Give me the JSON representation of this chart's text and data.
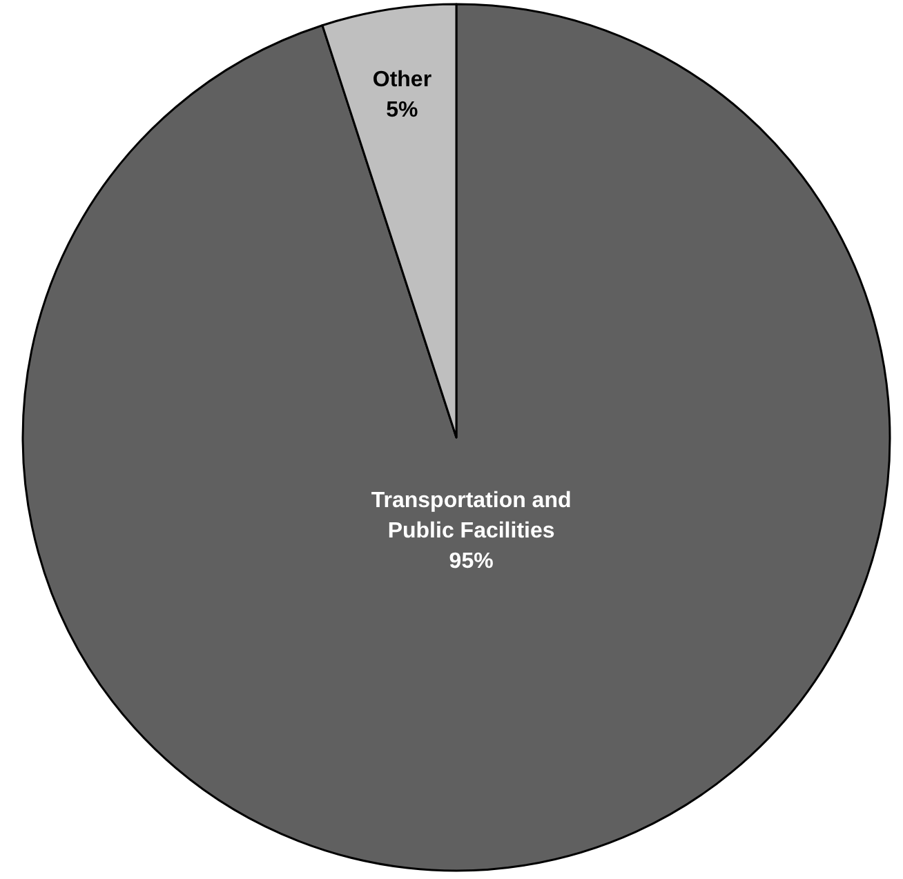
{
  "chart_data": {
    "type": "pie",
    "categories": [
      "Transportation and Public Facilities",
      "Other"
    ],
    "values": [
      95,
      5
    ],
    "colors": [
      "#606060",
      "#bfbfbf"
    ],
    "value_labels": [
      "95%",
      "5%"
    ]
  }
}
